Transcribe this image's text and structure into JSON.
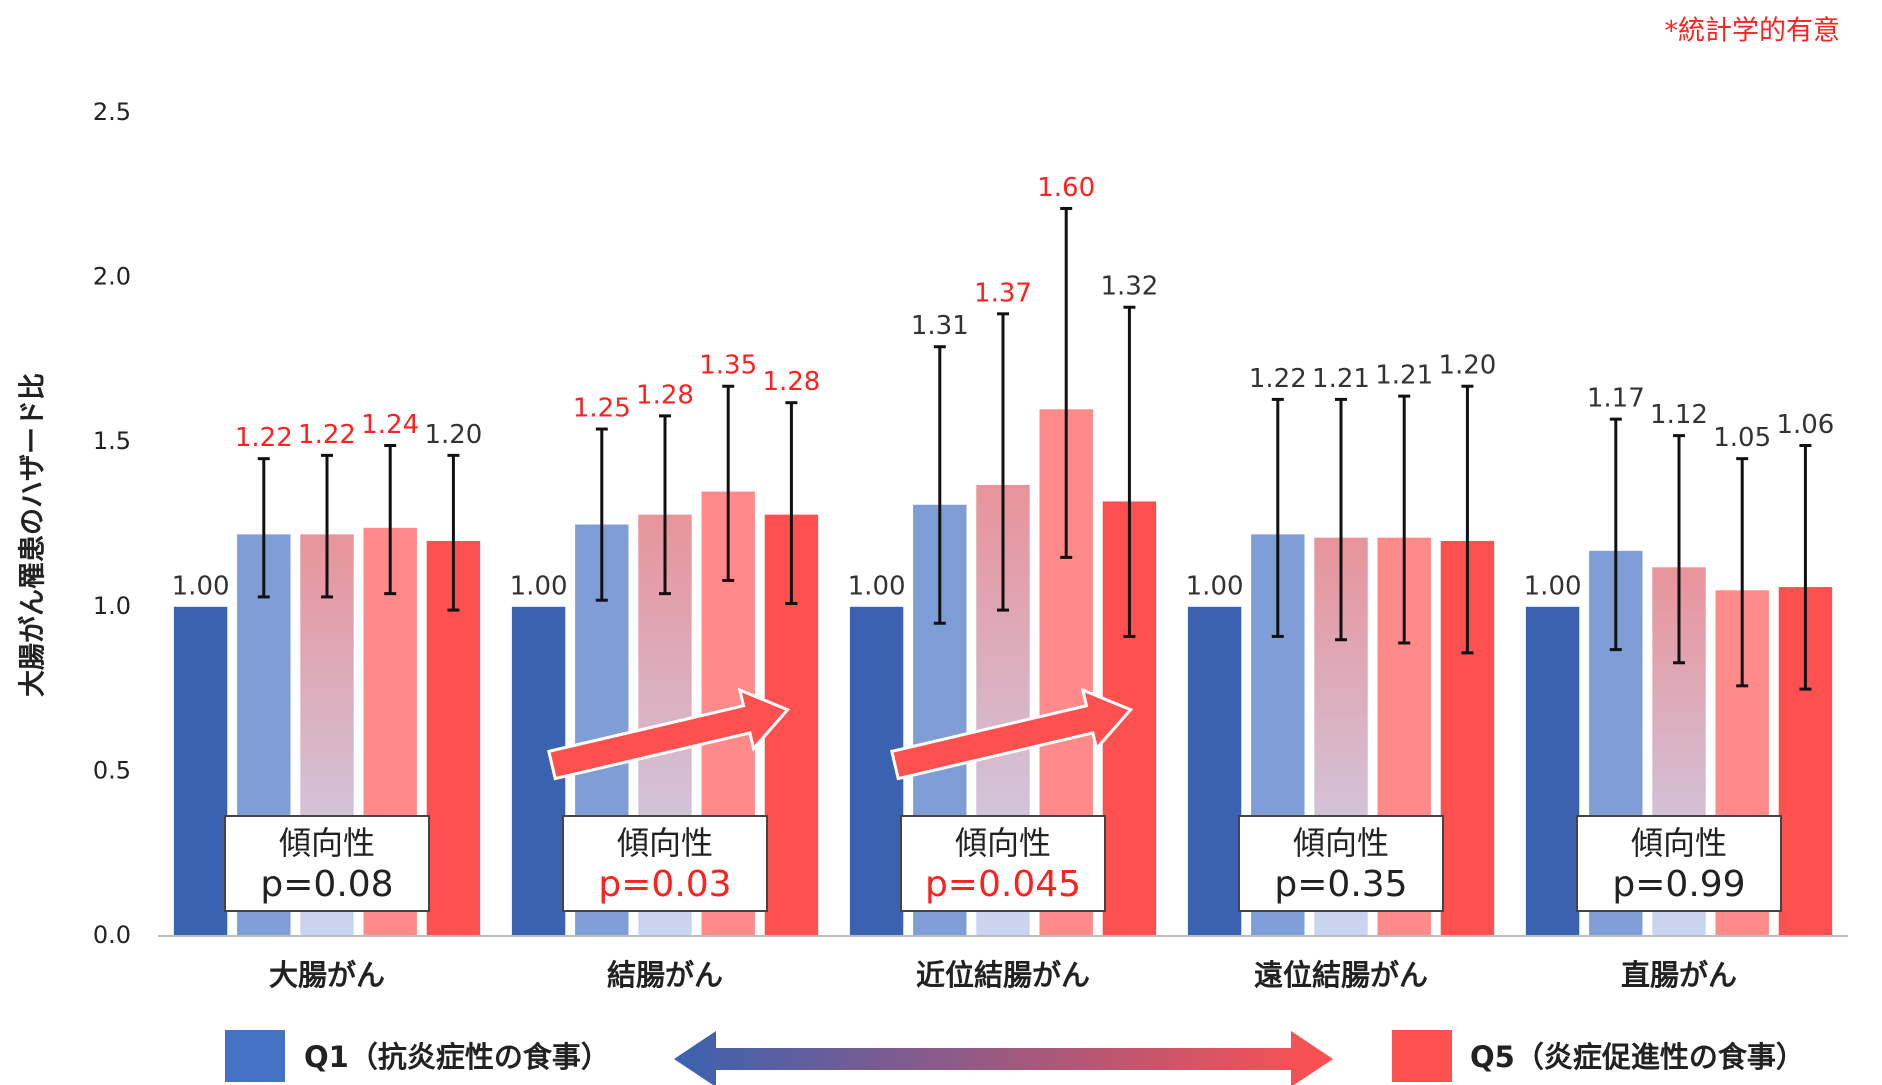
{
  "chart_data": {
    "type": "bar",
    "y_label": "大腸がん罹患のハザード比",
    "note": "*統計学的有意",
    "note_color": "#ff2020",
    "categories": [
      "大腸がん",
      "結腸がん",
      "近位結腸がん",
      "遠位結腸がん",
      "直腸がん"
    ],
    "series": [
      {
        "name": "Q1（抗炎症性の食事）",
        "color": "#3a62b0",
        "values": [
          1.0,
          1.0,
          1.0,
          1.0,
          1.0
        ],
        "value_labels": [
          "1.00",
          "1.00",
          "1.00",
          "1.00",
          "1.00"
        ],
        "value_label_colors": [
          "#333333",
          "#333333",
          "#333333",
          "#333333",
          "#333333"
        ]
      },
      {
        "color": "#7f9ed8",
        "values": [
          1.22,
          1.25,
          1.31,
          1.22,
          1.17
        ],
        "value_labels": [
          "1.22",
          "1.25",
          "1.31",
          "1.22",
          "1.17"
        ],
        "value_label_colors": [
          "#ff2020",
          "#ff2020",
          "#333333",
          "#333333",
          "#333333"
        ],
        "ci_low": [
          1.03,
          1.02,
          0.95,
          0.91,
          0.87
        ],
        "ci_high": [
          1.45,
          1.54,
          1.79,
          1.63,
          1.57
        ]
      },
      {
        "color": "#e8939a",
        "gradient_to": "#c9d6f2",
        "values": [
          1.22,
          1.28,
          1.37,
          1.21,
          1.12
        ],
        "value_labels": [
          "1.22",
          "1.28",
          "1.37",
          "1.21",
          "1.12"
        ],
        "value_label_colors": [
          "#ff2020",
          "#ff2020",
          "#ff2020",
          "#333333",
          "#333333"
        ],
        "ci_low": [
          1.03,
          1.04,
          0.99,
          0.9,
          0.83
        ],
        "ci_high": [
          1.46,
          1.58,
          1.89,
          1.63,
          1.52
        ]
      },
      {
        "color": "#ff8a8a",
        "values": [
          1.24,
          1.35,
          1.6,
          1.21,
          1.05
        ],
        "value_labels": [
          "1.24",
          "1.35",
          "1.60",
          "1.21",
          "1.05"
        ],
        "value_label_colors": [
          "#ff2020",
          "#ff2020",
          "#ff2020",
          "#333333",
          "#333333"
        ],
        "ci_low": [
          1.04,
          1.08,
          1.15,
          0.89,
          0.76
        ],
        "ci_high": [
          1.49,
          1.67,
          2.21,
          1.64,
          1.45
        ]
      },
      {
        "name": "Q5（炎症促進性の食事）",
        "color": "#ff5050",
        "values": [
          1.2,
          1.28,
          1.32,
          1.2,
          1.06
        ],
        "value_labels": [
          "1.20",
          "1.28",
          "1.32",
          "1.20",
          "1.06"
        ],
        "value_label_colors": [
          "#333333",
          "#ff2020",
          "#333333",
          "#333333",
          "#333333"
        ],
        "ci_low": [
          0.99,
          1.01,
          0.91,
          0.86,
          0.75
        ],
        "ci_high": [
          1.46,
          1.62,
          1.91,
          1.67,
          1.49
        ]
      }
    ],
    "trend_tests": [
      {
        "label": "傾向性",
        "p": "p=0.08",
        "color": "#222222"
      },
      {
        "label": "傾向性",
        "p": "p=0.03",
        "color": "#ff2020"
      },
      {
        "label": "傾向性",
        "p": "p=0.045",
        "color": "#ff2020"
      },
      {
        "label": "傾向性",
        "p": "p=0.35",
        "color": "#222222"
      },
      {
        "label": "傾向性",
        "p": "p=0.99",
        "color": "#222222"
      }
    ],
    "ylim": [
      0,
      2.5
    ],
    "yticks": [
      {
        "value": 0,
        "label": "0.0"
      },
      0.5,
      {
        "value": 1,
        "label": "1.0"
      },
      1.5,
      {
        "value": 2,
        "label": "2.0"
      },
      2.5
    ],
    "grid": false
  }
}
